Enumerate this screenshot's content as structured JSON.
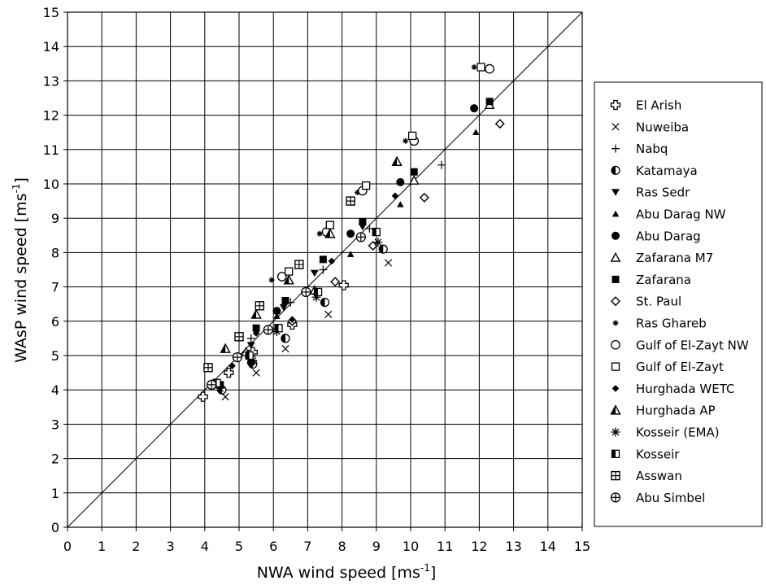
{
  "chart_data": {
    "type": "scatter",
    "xlabel": "NWA wind speed [ms",
    "ylabel": "WAsP wind speed [ms",
    "unit_superscript": "-1",
    "unit_close": "]",
    "xlim": [
      0,
      15
    ],
    "ylim": [
      0,
      15
    ],
    "xticks": [
      "0",
      "1",
      "2",
      "3",
      "4",
      "5",
      "6",
      "7",
      "8",
      "9",
      "10",
      "11",
      "12",
      "13",
      "14",
      "15"
    ],
    "yticks": [
      "0",
      "1",
      "2",
      "3",
      "4",
      "5",
      "6",
      "7",
      "8",
      "9",
      "10",
      "11",
      "12",
      "13",
      "14",
      "15"
    ],
    "grid": true,
    "diagonal_line": [
      [
        0,
        0
      ],
      [
        15,
        15
      ]
    ],
    "legend_position": "right",
    "series": [
      {
        "name": "El Arish",
        "marker": "plus-open",
        "points": [
          [
            3.95,
            3.8
          ],
          [
            4.7,
            4.5
          ],
          [
            5.4,
            5.1
          ],
          [
            6.55,
            5.9
          ],
          [
            8.05,
            7.05
          ]
        ]
      },
      {
        "name": "Nuweiba",
        "marker": "x",
        "points": [
          [
            4.6,
            3.8
          ],
          [
            5.5,
            4.5
          ],
          [
            6.35,
            5.2
          ],
          [
            7.6,
            6.2
          ],
          [
            9.35,
            7.7
          ]
        ]
      },
      {
        "name": "Nabq",
        "marker": "plus",
        "points": [
          [
            5.35,
            5.5
          ],
          [
            6.5,
            6.55
          ],
          [
            7.45,
            7.5
          ],
          [
            8.8,
            8.7
          ],
          [
            10.9,
            10.55
          ]
        ]
      },
      {
        "name": "Katamaya",
        "marker": "half-circle",
        "points": [
          [
            4.5,
            4.0
          ],
          [
            5.4,
            4.75
          ],
          [
            6.35,
            5.5
          ],
          [
            7.5,
            6.55
          ],
          [
            9.2,
            8.1
          ]
        ]
      },
      {
        "name": "Ras Sedr",
        "marker": "triangle-down",
        "points": [
          [
            5.35,
            5.3
          ],
          [
            6.3,
            6.4
          ],
          [
            7.2,
            7.4
          ],
          [
            8.6,
            8.75
          ]
        ]
      },
      {
        "name": "Abu Darag NW",
        "marker": "triangle-small",
        "points": [
          [
            6.1,
            6.15
          ],
          [
            8.25,
            7.95
          ],
          [
            9.7,
            9.4
          ],
          [
            11.9,
            11.5
          ]
        ]
      },
      {
        "name": "Abu Darag",
        "marker": "circle-filled",
        "points": [
          [
            5.35,
            4.8
          ],
          [
            6.1,
            6.3
          ],
          [
            8.25,
            8.55
          ],
          [
            9.7,
            10.05
          ],
          [
            11.85,
            12.2
          ]
        ]
      },
      {
        "name": "Zafarana M7",
        "marker": "triangle-open",
        "points": [
          [
            5.2,
            5.1
          ],
          [
            7.2,
            6.9
          ],
          [
            10.1,
            10.1
          ],
          [
            12.3,
            12.3
          ]
        ]
      },
      {
        "name": "Zafarana",
        "marker": "square-filled",
        "points": [
          [
            4.45,
            4.15
          ],
          [
            5.5,
            5.8
          ],
          [
            6.35,
            6.6
          ],
          [
            7.45,
            7.8
          ],
          [
            8.6,
            8.9
          ],
          [
            10.1,
            10.35
          ],
          [
            12.3,
            12.4
          ]
        ]
      },
      {
        "name": "St. Paul",
        "marker": "diamond-open",
        "points": [
          [
            6.55,
            6.0
          ],
          [
            7.8,
            7.15
          ],
          [
            8.9,
            8.2
          ],
          [
            10.4,
            9.6
          ],
          [
            12.6,
            11.75
          ]
        ]
      },
      {
        "name": "Ras Ghareb",
        "marker": "star",
        "points": [
          [
            5.95,
            7.2
          ],
          [
            7.35,
            8.55
          ],
          [
            8.45,
            9.75
          ],
          [
            9.85,
            11.25
          ],
          [
            11.85,
            13.4
          ]
        ]
      },
      {
        "name": "Gulf of El-Zayt NW",
        "marker": "circle-open",
        "points": [
          [
            6.25,
            7.3
          ],
          [
            7.55,
            8.6
          ],
          [
            8.6,
            9.8
          ],
          [
            10.1,
            11.25
          ],
          [
            12.3,
            13.35
          ]
        ]
      },
      {
        "name": "Gulf of El-Zayt",
        "marker": "square-open",
        "points": [
          [
            6.45,
            7.45
          ],
          [
            7.65,
            8.8
          ],
          [
            8.7,
            9.95
          ],
          [
            10.05,
            11.4
          ],
          [
            12.05,
            13.4
          ]
        ]
      },
      {
        "name": "Hurghada WETC",
        "marker": "diamond-filled",
        "points": [
          [
            4.8,
            4.7
          ],
          [
            5.5,
            5.65
          ],
          [
            6.55,
            6.05
          ],
          [
            7.7,
            7.75
          ],
          [
            9.55,
            9.65
          ]
        ]
      },
      {
        "name": "Hurghada AP",
        "marker": "triangle-half",
        "points": [
          [
            4.6,
            5.2
          ],
          [
            5.5,
            6.2
          ],
          [
            6.45,
            7.2
          ],
          [
            7.65,
            8.55
          ],
          [
            9.6,
            10.65
          ]
        ]
      },
      {
        "name": "Kosseir (EMA)",
        "marker": "asterisk",
        "points": [
          [
            4.45,
            4.05
          ],
          [
            5.4,
            4.85
          ],
          [
            6.1,
            5.7
          ],
          [
            7.25,
            6.7
          ],
          [
            9.05,
            8.3
          ]
        ]
      },
      {
        "name": "Kosseir",
        "marker": "square-half",
        "points": [
          [
            4.35,
            4.2
          ],
          [
            5.3,
            5.0
          ],
          [
            6.15,
            5.8
          ],
          [
            7.3,
            6.85
          ],
          [
            9.0,
            8.6
          ]
        ]
      },
      {
        "name": "Asswan",
        "marker": "square-cross",
        "points": [
          [
            4.1,
            4.65
          ],
          [
            5.0,
            5.55
          ],
          [
            5.6,
            6.45
          ],
          [
            6.75,
            7.65
          ],
          [
            8.25,
            9.5
          ]
        ]
      },
      {
        "name": "Abu Simbel",
        "marker": "circle-cross",
        "points": [
          [
            4.2,
            4.15
          ],
          [
            4.95,
            4.95
          ],
          [
            5.85,
            5.75
          ],
          [
            6.95,
            6.85
          ],
          [
            8.55,
            8.45
          ]
        ]
      }
    ]
  }
}
